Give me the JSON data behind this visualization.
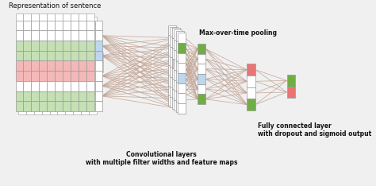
{
  "bg_color": "#f0f0f0",
  "title": "Representation of sentence",
  "label_conv": "Convolutional layers\nwith multiple filter widths and feature maps",
  "label_pool": "Max-over-time pooling",
  "label_fc": "Fully connected layer\nwith dropout and sigmoid output",
  "grid_color": "#999999",
  "green_fill": "#c5e0b4",
  "red_fill": "#f4b8b8",
  "blue_fill": "#bdd7ee",
  "pink_fill": "#e87575",
  "light_green_fill": "#70ad47",
  "line_color": "#c0a090",
  "text_color": "#111111",
  "white_fill": "#ffffff"
}
